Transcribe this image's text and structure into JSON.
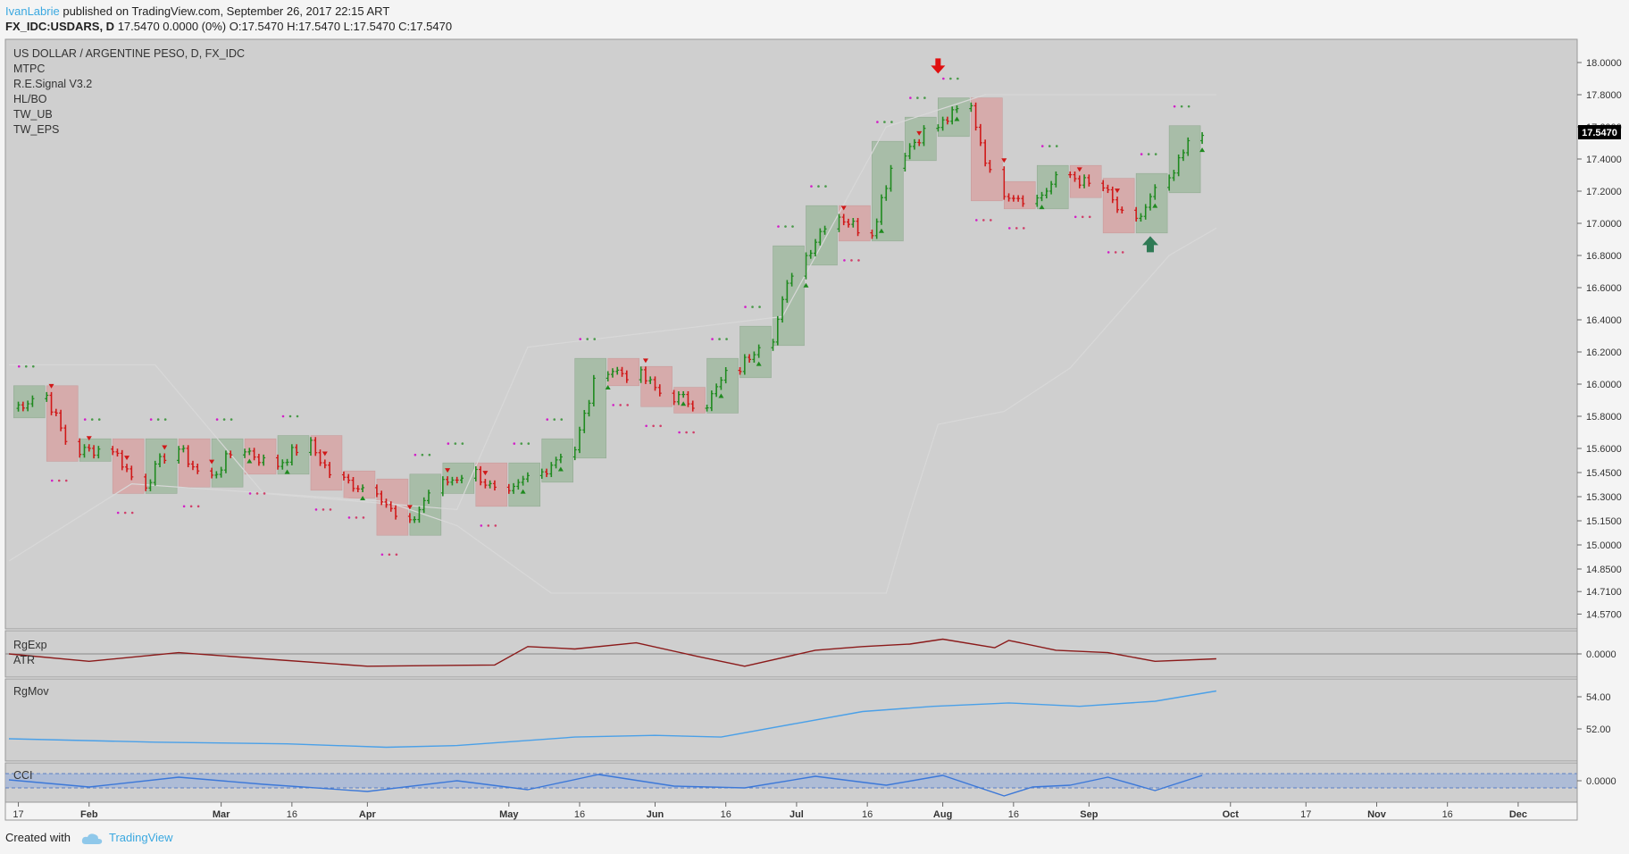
{
  "header": {
    "author": "IvanLabrie",
    "published_text": "published on TradingView.com, September 26, 2017 22:15 ART",
    "symbol": "FX_IDC:USDARS, D",
    "quote": "17.5470 0.0000 (0%) O:17.5470 H:17.5470 L:17.5470 C:17.5470"
  },
  "main_pane": {
    "title": "US DOLLAR / ARGENTINE PESO, D, FX_IDC",
    "indicators": [
      "MTPC",
      "R.E.Signal V3.2",
      "HL/BO",
      "TW_UB",
      "TW_EPS"
    ],
    "last_price_label": "17.5470"
  },
  "sub_panes": {
    "rgexp": {
      "labels": [
        "RgExp",
        "ATR"
      ],
      "tick": "0.0000"
    },
    "rgmov": {
      "labels": [
        "RgMov"
      ],
      "ticks": [
        "54.00",
        "52.00"
      ]
    },
    "cci": {
      "labels": [
        "CCI"
      ],
      "tick": "0.0000"
    }
  },
  "footer": {
    "created_with": "Created with",
    "brand": "TradingView"
  },
  "colors": {
    "up": "#1f8a1f",
    "down": "#d01818",
    "upper_band": "#d8d8d8",
    "rgexp": "#8b1a1a",
    "rgmov": "#4aa0e8",
    "cci": "#3c78d8",
    "pane_bg": "#cfcfcf"
  },
  "chart_data": {
    "type": "candlestick",
    "symbol": "USDARS",
    "y_axis_ticks": [
      "18.0000",
      "17.8000",
      "17.6000",
      "17.4000",
      "17.2000",
      "17.0000",
      "16.8000",
      "16.6000",
      "16.4000",
      "16.2000",
      "16.0000",
      "15.8000",
      "15.6000",
      "15.4500",
      "15.3000",
      "15.1500",
      "15.0000",
      "14.8500",
      "14.7100",
      "14.5700"
    ],
    "ylim": [
      14.5,
      18.1
    ],
    "x_axis_ticks": [
      "17",
      "Feb",
      "Mar",
      "16",
      "Apr",
      "May",
      "16",
      "Jun",
      "16",
      "Jul",
      "16",
      "Aug",
      "16",
      "Sep",
      "Oct",
      "17",
      "Nov",
      "16",
      "Dec"
    ],
    "x_range": [
      "2017-01-15",
      "2017-12-12"
    ],
    "events": [
      {
        "type": "sell-arrow",
        "date": "2017-07-31",
        "price": 17.97
      },
      {
        "type": "buy-arrow",
        "date": "2017-09-14",
        "price": 16.87
      }
    ],
    "series": [
      {
        "name": "USDARS",
        "points": [
          [
            "2017-01-16",
            15.85
          ],
          [
            "2017-01-23",
            15.93
          ],
          [
            "2017-01-30",
            15.58
          ],
          [
            "2017-02-06",
            15.6
          ],
          [
            "2017-02-13",
            15.38
          ],
          [
            "2017-02-20",
            15.6
          ],
          [
            "2017-02-27",
            15.42
          ],
          [
            "2017-03-06",
            15.6
          ],
          [
            "2017-03-13",
            15.5
          ],
          [
            "2017-03-20",
            15.62
          ],
          [
            "2017-03-27",
            15.4
          ],
          [
            "2017-04-03",
            15.35
          ],
          [
            "2017-04-10",
            15.12
          ],
          [
            "2017-04-17",
            15.38
          ],
          [
            "2017-04-24",
            15.45
          ],
          [
            "2017-05-01",
            15.3
          ],
          [
            "2017-05-08",
            15.45
          ],
          [
            "2017-05-15",
            15.6
          ],
          [
            "2017-05-22",
            16.1
          ],
          [
            "2017-05-29",
            16.05
          ],
          [
            "2017-06-05",
            15.92
          ],
          [
            "2017-06-12",
            15.88
          ],
          [
            "2017-06-19",
            16.1
          ],
          [
            "2017-06-26",
            16.3
          ],
          [
            "2017-07-03",
            16.8
          ],
          [
            "2017-07-10",
            17.05
          ],
          [
            "2017-07-17",
            16.95
          ],
          [
            "2017-07-24",
            17.45
          ],
          [
            "2017-07-31",
            17.6
          ],
          [
            "2017-08-07",
            17.72
          ],
          [
            "2017-08-14",
            17.2
          ],
          [
            "2017-08-21",
            17.15
          ],
          [
            "2017-08-28",
            17.3
          ],
          [
            "2017-09-04",
            17.22
          ],
          [
            "2017-09-11",
            17.0
          ],
          [
            "2017-09-18",
            17.25
          ],
          [
            "2017-09-25",
            17.547
          ]
        ]
      },
      {
        "name": "TW_UB",
        "points": [
          [
            "2017-01-15",
            16.12
          ],
          [
            "2017-02-15",
            16.12
          ],
          [
            "2017-03-10",
            15.32
          ],
          [
            "2017-04-20",
            15.22
          ],
          [
            "2017-05-05",
            16.23
          ],
          [
            "2017-06-28",
            16.42
          ],
          [
            "2017-07-20",
            17.6
          ],
          [
            "2017-08-10",
            17.8
          ],
          [
            "2017-09-28",
            17.8
          ]
        ]
      },
      {
        "name": "lower band",
        "points": [
          [
            "2017-01-15",
            14.9
          ],
          [
            "2017-02-10",
            15.38
          ],
          [
            "2017-04-05",
            15.27
          ],
          [
            "2017-04-20",
            15.12
          ],
          [
            "2017-05-10",
            14.7
          ],
          [
            "2017-07-20",
            14.7
          ],
          [
            "2017-07-25",
            15.2
          ],
          [
            "2017-07-31",
            15.75
          ],
          [
            "2017-08-14",
            15.83
          ],
          [
            "2017-08-28",
            16.1
          ],
          [
            "2017-09-18",
            16.8
          ],
          [
            "2017-09-28",
            16.97
          ]
        ]
      },
      {
        "name": "RgExp",
        "points": [
          [
            "2017-01-15",
            0.0
          ],
          [
            "2017-02-01",
            -0.6
          ],
          [
            "2017-02-20",
            0.1
          ],
          [
            "2017-03-10",
            -0.4
          ],
          [
            "2017-04-01",
            -1.0
          ],
          [
            "2017-04-28",
            -0.9
          ],
          [
            "2017-05-05",
            0.6
          ],
          [
            "2017-05-15",
            0.4
          ],
          [
            "2017-05-28",
            0.9
          ],
          [
            "2017-06-10",
            -0.2
          ],
          [
            "2017-06-20",
            -1.0
          ],
          [
            "2017-07-05",
            0.3
          ],
          [
            "2017-07-15",
            0.6
          ],
          [
            "2017-07-25",
            0.8
          ],
          [
            "2017-08-01",
            1.2
          ],
          [
            "2017-08-12",
            0.5
          ],
          [
            "2017-08-15",
            1.1
          ],
          [
            "2017-08-25",
            0.3
          ],
          [
            "2017-09-05",
            0.1
          ],
          [
            "2017-09-15",
            -0.6
          ],
          [
            "2017-09-28",
            -0.4
          ]
        ]
      },
      {
        "name": "RgMov",
        "points": [
          [
            "2017-01-15",
            51.7
          ],
          [
            "2017-02-15",
            51.5
          ],
          [
            "2017-03-15",
            51.4
          ],
          [
            "2017-04-05",
            51.2
          ],
          [
            "2017-04-20",
            51.3
          ],
          [
            "2017-05-15",
            51.8
          ],
          [
            "2017-06-01",
            51.9
          ],
          [
            "2017-06-15",
            51.8
          ],
          [
            "2017-07-01",
            52.6
          ],
          [
            "2017-07-15",
            53.3
          ],
          [
            "2017-07-30",
            53.6
          ],
          [
            "2017-08-15",
            53.8
          ],
          [
            "2017-08-30",
            53.6
          ],
          [
            "2017-09-15",
            53.9
          ],
          [
            "2017-09-28",
            54.5
          ]
        ]
      },
      {
        "name": "CCI",
        "points": [
          [
            "2017-01-15",
            0.3
          ],
          [
            "2017-02-01",
            -0.5
          ],
          [
            "2017-02-20",
            0.6
          ],
          [
            "2017-03-10",
            -0.2
          ],
          [
            "2017-04-01",
            -1.0
          ],
          [
            "2017-04-20",
            0.2
          ],
          [
            "2017-05-05",
            -0.8
          ],
          [
            "2017-05-20",
            0.9
          ],
          [
            "2017-06-05",
            -0.4
          ],
          [
            "2017-06-20",
            -0.6
          ],
          [
            "2017-07-05",
            0.7
          ],
          [
            "2017-07-20",
            -0.3
          ],
          [
            "2017-08-01",
            0.8
          ],
          [
            "2017-08-14",
            -1.5
          ],
          [
            "2017-08-20",
            -0.5
          ],
          [
            "2017-08-28",
            -0.3
          ],
          [
            "2017-09-05",
            0.6
          ],
          [
            "2017-09-15",
            -0.9
          ],
          [
            "2017-09-25",
            0.8
          ]
        ]
      }
    ]
  }
}
